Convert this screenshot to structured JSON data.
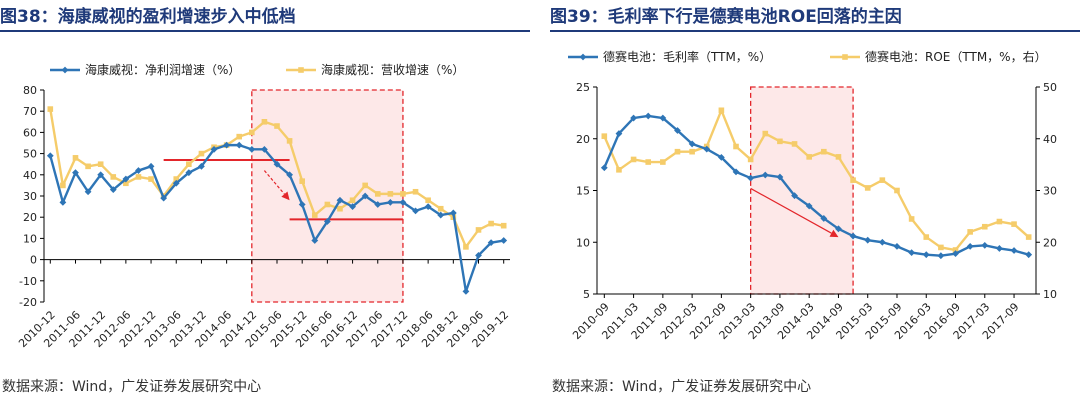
{
  "charts": [
    {
      "title": "图38：海康威视的盈利增速步入中低档",
      "source": "数据来源：Wind，广发证券发展研究中心"
    },
    {
      "title": "图39：毛利率下行是德赛电池ROE回落的主因",
      "source": "数据来源：Wind，广发证券发展研究中心"
    }
  ],
  "chart_data": [
    {
      "type": "line",
      "title": "图38：海康威视的盈利增速步入中低档",
      "x": [
        "2010-12",
        "2011-03",
        "2011-06",
        "2011-09",
        "2011-12",
        "2012-03",
        "2012-06",
        "2012-09",
        "2012-12",
        "2013-03",
        "2013-06",
        "2013-09",
        "2013-12",
        "2014-03",
        "2014-06",
        "2014-09",
        "2014-12",
        "2015-03",
        "2015-06",
        "2015-09",
        "2015-12",
        "2016-03",
        "2016-06",
        "2016-09",
        "2016-12",
        "2017-03",
        "2017-06",
        "2017-09",
        "2017-12",
        "2018-03",
        "2018-06",
        "2018-09",
        "2018-12",
        "2019-03",
        "2019-06",
        "2019-09",
        "2019-12"
      ],
      "x_tick_labels": [
        "2010-12",
        "2011-06",
        "2011-12",
        "2012-06",
        "2012-12",
        "2013-06",
        "2013-12",
        "2014-06",
        "2014-12",
        "2015-06",
        "2015-12",
        "2016-06",
        "2016-12",
        "2017-06",
        "2017-12",
        "2018-06",
        "2018-12",
        "2019-06",
        "2019-12"
      ],
      "series": [
        {
          "name": "海康威视：净利润增速（%）",
          "color": "#2e75b6",
          "marker": "diamond",
          "values": [
            49,
            27,
            41,
            32,
            40,
            33,
            38,
            42,
            44,
            29,
            36,
            41,
            44,
            52,
            54,
            54,
            52,
            52,
            45,
            40,
            26,
            9,
            18,
            28,
            25,
            30,
            26,
            27,
            27,
            23,
            25,
            21,
            22,
            -15,
            2,
            8,
            9
          ]
        },
        {
          "name": "海康威视：营收增速（%）",
          "color": "#f5cc6a",
          "marker": "square",
          "values": [
            71,
            35,
            48,
            44,
            45,
            39,
            36,
            39,
            38,
            30,
            38,
            45,
            50,
            53,
            54,
            58,
            60,
            65,
            63,
            56,
            37,
            21,
            26,
            24,
            28,
            35,
            31,
            31,
            31,
            32,
            28,
            24,
            20,
            6,
            14,
            17,
            16
          ]
        }
      ],
      "ylim": [
        -20,
        80
      ],
      "yticks": [
        -20,
        -10,
        0,
        10,
        20,
        30,
        40,
        50,
        60,
        70,
        80
      ],
      "legend_position": "top",
      "annotations": [
        {
          "type": "shaded-box",
          "x_from": "2014-12",
          "x_to": "2017-12",
          "y_from": -20,
          "y_to": 80,
          "style": "red-dashed"
        },
        {
          "type": "hline",
          "x_from": "2013-03",
          "x_to": "2015-09",
          "y": 47,
          "color": "#e3262b"
        },
        {
          "type": "hline",
          "x_from": "2015-09",
          "x_to": "2017-12",
          "y": 19,
          "color": "#e3262b"
        },
        {
          "type": "arrow",
          "x_from": "2015-03",
          "y_from": 42,
          "x_to": "2015-09",
          "y_to": 28,
          "color": "#e3262b",
          "style": "dashed"
        }
      ]
    },
    {
      "type": "line",
      "title": "图39：毛利率下行是德赛电池ROE回落的主因",
      "x": [
        "2010-09",
        "2010-12",
        "2011-03",
        "2011-06",
        "2011-09",
        "2011-12",
        "2012-03",
        "2012-06",
        "2012-09",
        "2012-12",
        "2013-03",
        "2013-06",
        "2013-09",
        "2013-12",
        "2014-03",
        "2014-06",
        "2014-09",
        "2014-12",
        "2015-03",
        "2015-06",
        "2015-09",
        "2015-12",
        "2016-03",
        "2016-06",
        "2016-09",
        "2016-12",
        "2017-03",
        "2017-06",
        "2017-09",
        "2017-12"
      ],
      "x_tick_labels": [
        "2010-09",
        "2011-03",
        "2011-09",
        "2012-03",
        "2012-09",
        "2013-03",
        "2013-09",
        "2014-03",
        "2014-09",
        "2015-03",
        "2015-09",
        "2016-03",
        "2016-09",
        "2017-03",
        "2017-09"
      ],
      "series": [
        {
          "name": "德赛电池：毛利率（TTM，%）",
          "axis": "left",
          "color": "#2e75b6",
          "marker": "diamond",
          "values": [
            17.2,
            20.5,
            22.0,
            22.2,
            22.0,
            20.8,
            19.5,
            19.0,
            18.2,
            16.8,
            16.2,
            16.5,
            16.3,
            14.5,
            13.5,
            12.3,
            11.3,
            10.6,
            10.2,
            10.0,
            9.6,
            9.0,
            8.8,
            8.7,
            8.9,
            9.6,
            9.7,
            9.4,
            9.2,
            8.8
          ]
        },
        {
          "name": "德赛电池：ROE（TTM，%，右）",
          "axis": "right",
          "color": "#f5cc6a",
          "marker": "square",
          "values": [
            40.5,
            34.0,
            36.0,
            35.5,
            35.5,
            37.5,
            37.5,
            38.5,
            45.5,
            38.5,
            36.0,
            41.0,
            39.5,
            39.0,
            36.5,
            37.5,
            36.5,
            32.0,
            30.5,
            32.0,
            30.0,
            24.5,
            21.0,
            19.0,
            18.5,
            22.0,
            23.0,
            24.0,
            23.5,
            21.0
          ]
        }
      ],
      "ylim": [
        5,
        25
      ],
      "yticks": [
        5,
        10,
        15,
        20,
        25
      ],
      "y2lim": [
        10,
        50
      ],
      "y2ticks": [
        10,
        20,
        30,
        40,
        50
      ],
      "legend_position": "top",
      "annotations": [
        {
          "type": "shaded-box",
          "x_from": "2013-03",
          "x_to": "2014-12",
          "y_from": 5,
          "y_to": 25,
          "style": "red-dashed"
        },
        {
          "type": "arrow",
          "x_from": "2013-03",
          "y_from": 15.2,
          "x_to": "2014-09",
          "y_to": 10.5,
          "color": "#e3262b"
        }
      ]
    }
  ]
}
